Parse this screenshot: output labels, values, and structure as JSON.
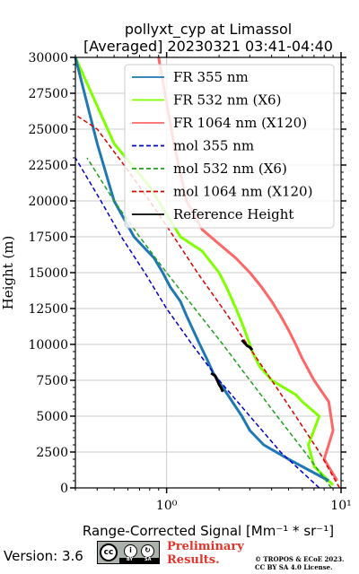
{
  "chart_data": {
    "type": "line",
    "title": "pollyxt_cyp at Limassol",
    "subtitle": "[Averaged] 20230321 03:41-04:40",
    "xlabel": "Range-Corrected Signal [Mm⁻¹ * sr⁻¹]",
    "ylabel": "Height (m)",
    "xscale": "log",
    "xlim": [
      0.3,
      10
    ],
    "ylim": [
      0,
      30000
    ],
    "grid": true,
    "legend_position": "top-right",
    "xticks": [
      "10⁰",
      "10¹"
    ],
    "yticks": [
      "0",
      "2500",
      "5000",
      "7500",
      "10000",
      "12500",
      "15000",
      "17500",
      "20000",
      "22500",
      "25000",
      "27500",
      "30000"
    ],
    "series": [
      {
        "name": "FR 355 nm",
        "color": "#1f77b4",
        "style": "solid",
        "x": [
          8.5,
          5.0,
          3.6,
          3.0,
          2.7,
          2.1,
          1.85,
          1.7,
          1.55,
          1.3,
          1.2,
          1.05,
          0.95,
          0.85,
          0.65,
          0.5,
          0.4,
          0.3
        ],
        "y": [
          500,
          2000,
          3000,
          4000,
          5000,
          7000,
          8000,
          9000,
          10000,
          12000,
          13000,
          14000,
          15000,
          16000,
          17500,
          20000,
          24000,
          30000
        ]
      },
      {
        "name": "FR 532 nm (X6)",
        "color": "#80ff00",
        "style": "solid",
        "x": [
          9.0,
          7.0,
          6.5,
          7.5,
          6.0,
          5.5,
          4.0,
          3.4,
          3.1,
          2.9,
          2.7,
          2.5,
          2.2,
          2.0,
          1.6,
          1.2,
          0.8,
          0.5,
          0.3
        ],
        "y": [
          200,
          1500,
          3000,
          5000,
          6000,
          6500,
          7500,
          8500,
          9500,
          10500,
          11500,
          12500,
          14000,
          15000,
          16500,
          17500,
          21000,
          24000,
          30000
        ]
      },
      {
        "name": "FR 1064 nm (X120)",
        "color": "#ff6666",
        "style": "solid",
        "x": [
          9.5,
          8.0,
          9.0,
          8.5,
          7.0,
          6.0,
          5.5,
          5.0,
          4.5,
          4.0,
          3.5,
          3.0,
          2.5,
          2.0,
          1.6,
          1.3,
          1.1,
          0.9
        ],
        "y": [
          500,
          2000,
          4000,
          6000,
          7500,
          9000,
          10000,
          11000,
          12000,
          13000,
          14000,
          15000,
          16000,
          17000,
          18000,
          20000,
          24000,
          30000
        ]
      },
      {
        "name": "mol 355 nm",
        "color": "#0000cc",
        "style": "dashed",
        "x": [
          7.5,
          4.5,
          3.0,
          2.0,
          1.4,
          1.0,
          0.75,
          0.55,
          0.42,
          0.3
        ],
        "y": [
          0,
          2500,
          5000,
          7500,
          10000,
          12500,
          15000,
          17500,
          20000,
          23000
        ]
      },
      {
        "name": "mol 532 nm (X6)",
        "color": "#20a020",
        "style": "dashed",
        "x": [
          8.8,
          6.2,
          4.3,
          3.0,
          2.1,
          1.45,
          1.0,
          0.7,
          0.5,
          0.35
        ],
        "y": [
          0,
          2500,
          5000,
          7500,
          10000,
          12500,
          15000,
          17500,
          20000,
          23000
        ]
      },
      {
        "name": "mol 1064 nm (X120)",
        "color": "#dd0000",
        "style": "dashed",
        "x": [
          9.8,
          7.5,
          5.5,
          4.0,
          2.9,
          2.1,
          1.5,
          1.1,
          0.8,
          0.57,
          0.4,
          0.3
        ],
        "y": [
          0,
          2500,
          5000,
          7500,
          10000,
          12500,
          15000,
          17500,
          20000,
          22500,
          25000,
          26000
        ]
      },
      {
        "name": "Reference Height",
        "color": "#000000",
        "style": "solid",
        "segments": [
          {
            "x": [
              1.8,
              1.9,
              1.95,
              2.0,
              2.05,
              2.1
            ],
            "y": [
              8000,
              7800,
              7500,
              7200,
              7000,
              6700
            ]
          },
          {
            "x": [
              2.7,
              2.8,
              2.9,
              3.0,
              3.1
            ],
            "y": [
              10300,
              10100,
              9900,
              9800,
              9600
            ]
          }
        ]
      }
    ]
  },
  "footer": {
    "version": "Version: 3.6",
    "cc_label": "cc",
    "cc_by": "BY",
    "cc_sa": "SA",
    "preliminary_line1": "Preliminary",
    "preliminary_line2": "Results.",
    "copyright_line1": "© TROPOS & ECoE 2023.",
    "copyright_line2": "CC BY SA 4.0 License."
  }
}
